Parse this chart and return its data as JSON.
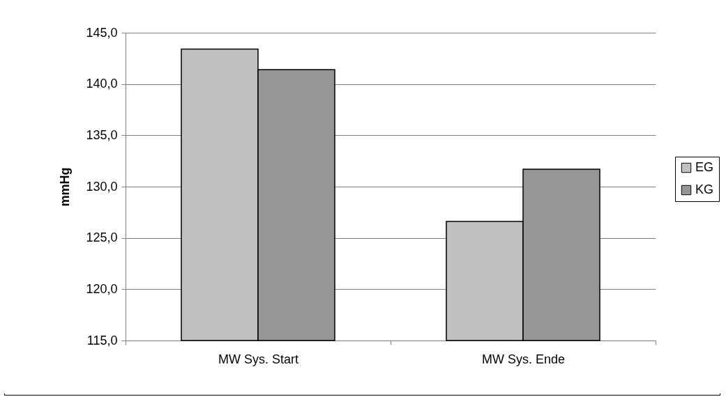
{
  "chart_data": {
    "type": "bar",
    "ylabel": "mmHg",
    "categories": [
      "MW Sys. Start",
      "MW Sys. Ende"
    ],
    "series": [
      {
        "name": "EG",
        "color": "#c0c0c0",
        "values": [
          143.4,
          126.6
        ]
      },
      {
        "name": "KG",
        "color": "#969696",
        "values": [
          141.4,
          131.7
        ]
      }
    ],
    "ylim": [
      115,
      145
    ],
    "yticks": [
      {
        "value": 115,
        "label": "115,0"
      },
      {
        "value": 120,
        "label": "120,0"
      },
      {
        "value": 125,
        "label": "125,0"
      },
      {
        "value": 130,
        "label": "130,0"
      },
      {
        "value": 135,
        "label": "135,0"
      },
      {
        "value": 140,
        "label": "140,0"
      },
      {
        "value": 145,
        "label": "145,0"
      }
    ],
    "grid": "y",
    "legend": "right"
  }
}
